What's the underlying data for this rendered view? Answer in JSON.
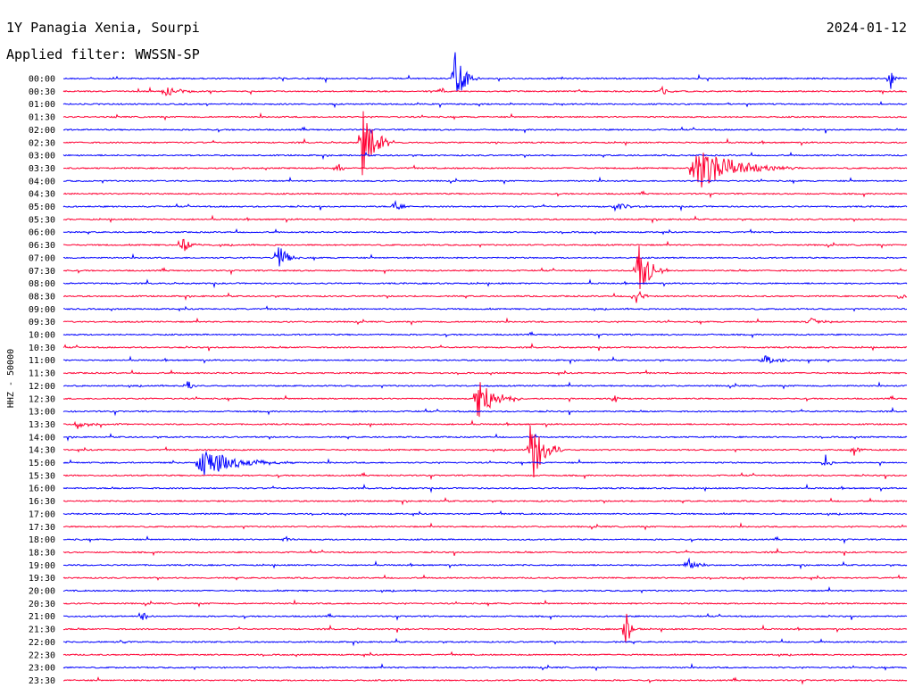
{
  "header": {
    "station": "1Y Panagia Xenia, Sourpi",
    "date": "2024-01-12",
    "filter": "Applied filter: WWSSN-SP"
  },
  "chart_data": {
    "type": "line",
    "title": "1Y Panagia Xenia, Sourpi",
    "date": "2024-01-12",
    "filter": "WWSSN-SP",
    "ylabel": "HHZ - 50000",
    "xlabel": "",
    "x_unit": "minutes",
    "xlim": [
      0,
      30
    ],
    "grid": false,
    "series_colors": [
      "#0000ff",
      "#ff0033"
    ],
    "rows": [
      "00:00",
      "00:30",
      "01:00",
      "01:30",
      "02:00",
      "02:30",
      "03:00",
      "03:30",
      "04:00",
      "04:30",
      "05:00",
      "05:30",
      "06:00",
      "06:30",
      "07:00",
      "07:30",
      "08:00",
      "08:30",
      "09:00",
      "09:30",
      "10:00",
      "10:30",
      "11:00",
      "11:30",
      "12:00",
      "12:30",
      "13:00",
      "13:30",
      "14:00",
      "14:30",
      "15:00",
      "15:30",
      "16:00",
      "16:30",
      "17:00",
      "17:30",
      "18:00",
      "18:30",
      "19:00",
      "19:30",
      "20:00",
      "20:30",
      "21:00",
      "21:30",
      "22:00",
      "22:30",
      "23:00",
      "23:30"
    ],
    "events": [
      {
        "row": "00:00",
        "minute": 13.9,
        "amp": 2.6,
        "dur": 0.9
      },
      {
        "row": "00:00",
        "minute": 29.4,
        "amp": 1.0,
        "dur": 0.4
      },
      {
        "row": "00:30",
        "minute": 3.6,
        "amp": 0.5,
        "dur": 1.5
      },
      {
        "row": "00:30",
        "minute": 13.4,
        "amp": 0.5,
        "dur": 0.4
      },
      {
        "row": "00:30",
        "minute": 21.3,
        "amp": 0.8,
        "dur": 0.4
      },
      {
        "row": "02:30",
        "minute": 10.6,
        "amp": 3.0,
        "dur": 1.2
      },
      {
        "row": "03:30",
        "minute": 22.4,
        "amp": 2.0,
        "dur": 3.8
      },
      {
        "row": "03:30",
        "minute": 9.8,
        "amp": 0.4,
        "dur": 0.4
      },
      {
        "row": "05:00",
        "minute": 11.8,
        "amp": 0.9,
        "dur": 0.5
      },
      {
        "row": "05:00",
        "minute": 19.6,
        "amp": 0.3,
        "dur": 1.4
      },
      {
        "row": "06:30",
        "minute": 4.2,
        "amp": 0.9,
        "dur": 0.8
      },
      {
        "row": "07:00",
        "minute": 7.6,
        "amp": 1.4,
        "dur": 0.8
      },
      {
        "row": "07:30",
        "minute": 20.4,
        "amp": 2.9,
        "dur": 1.1
      },
      {
        "row": "08:30",
        "minute": 20.3,
        "amp": 0.7,
        "dur": 0.8
      },
      {
        "row": "08:30",
        "minute": 29.8,
        "amp": 0.6,
        "dur": 0.2
      },
      {
        "row": "09:30",
        "minute": 26.5,
        "amp": 0.4,
        "dur": 1.2
      },
      {
        "row": "11:00",
        "minute": 24.9,
        "amp": 0.4,
        "dur": 1.5
      },
      {
        "row": "12:00",
        "minute": 4.4,
        "amp": 0.7,
        "dur": 0.4
      },
      {
        "row": "12:30",
        "minute": 14.7,
        "amp": 2.1,
        "dur": 1.6
      },
      {
        "row": "12:30",
        "minute": 19.6,
        "amp": 0.5,
        "dur": 0.3
      },
      {
        "row": "13:30",
        "minute": 0.5,
        "amp": 0.4,
        "dur": 1.1
      },
      {
        "row": "14:30",
        "minute": 16.6,
        "amp": 3.2,
        "dur": 1.2
      },
      {
        "row": "14:30",
        "minute": 28.1,
        "amp": 0.6,
        "dur": 0.5
      },
      {
        "row": "15:00",
        "minute": 4.8,
        "amp": 1.2,
        "dur": 3.5
      },
      {
        "row": "15:00",
        "minute": 27.1,
        "amp": 0.7,
        "dur": 0.4
      },
      {
        "row": "18:00",
        "minute": 7.9,
        "amp": 0.4,
        "dur": 0.4
      },
      {
        "row": "19:00",
        "minute": 22.2,
        "amp": 0.6,
        "dur": 1.0
      },
      {
        "row": "21:00",
        "minute": 2.8,
        "amp": 0.6,
        "dur": 0.4
      },
      {
        "row": "21:30",
        "minute": 20.0,
        "amp": 1.5,
        "dur": 0.6
      },
      {
        "row": "22:00",
        "minute": 2.1,
        "amp": 0.4,
        "dur": 0.3
      }
    ]
  }
}
